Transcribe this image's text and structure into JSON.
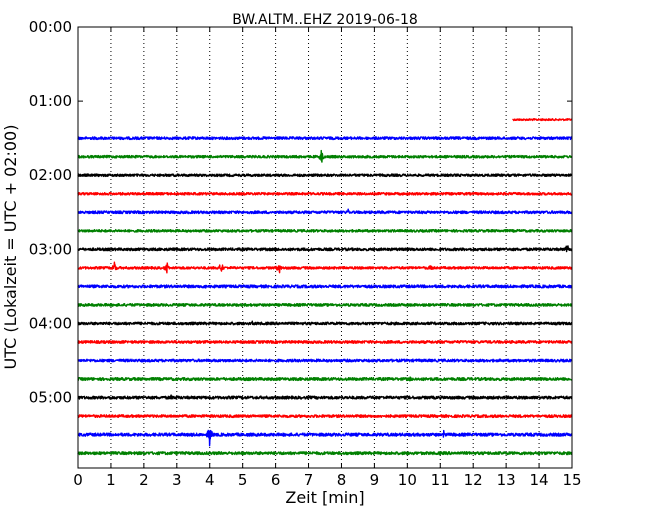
{
  "chart_data": {
    "type": "line",
    "title": "BW.ALTM..EHZ 2019-06-18",
    "xlabel": "Zeit  [min]",
    "ylabel": "UTC (Lokalzeit = UTC + 02:00)",
    "xlim": [
      0,
      15
    ],
    "ylim_hours": [
      0.0,
      5.95
    ],
    "x_ticks": [
      0,
      1,
      2,
      3,
      4,
      5,
      6,
      7,
      8,
      9,
      10,
      11,
      12,
      13,
      14,
      15
    ],
    "x_tick_labels": [
      "0",
      "1",
      "2",
      "3",
      "4",
      "5",
      "6",
      "7",
      "8",
      "9",
      "10",
      "11",
      "12",
      "13",
      "14",
      "15"
    ],
    "y_tick_labels": [
      "00:00",
      "01:00",
      "02:00",
      "03:00",
      "04:00",
      "05:00"
    ],
    "y_ticks_hours": [
      0,
      1,
      2,
      3,
      4,
      5
    ],
    "vertical_grid": "dotted",
    "trace_row_minutes": 15,
    "trace_color_cycle": [
      "#ff0000",
      "#0000ff",
      "#008000",
      "#000000"
    ],
    "traces": [
      {
        "start_hour": 1.25,
        "x_start": 13.2,
        "x_end": 15,
        "color": "#ff0000",
        "noise": 0.9,
        "events": []
      },
      {
        "start_hour": 1.5,
        "x_start": 0,
        "x_end": 15,
        "color": "#0000ff",
        "noise": 1.3,
        "events": []
      },
      {
        "start_hour": 1.75,
        "x_start": 0,
        "x_end": 15,
        "color": "#008000",
        "noise": 1.2,
        "events": [
          {
            "x": 7.4,
            "amp": 9
          }
        ]
      },
      {
        "start_hour": 2.0,
        "x_start": 0,
        "x_end": 15,
        "color": "#000000",
        "noise": 1.2,
        "events": []
      },
      {
        "start_hour": 2.25,
        "x_start": 0,
        "x_end": 15,
        "color": "#ff0000",
        "noise": 1.2,
        "events": []
      },
      {
        "start_hour": 2.5,
        "x_start": 0,
        "x_end": 15,
        "color": "#0000ff",
        "noise": 1.3,
        "events": [
          {
            "x": 8.2,
            "amp": 3
          }
        ]
      },
      {
        "start_hour": 2.75,
        "x_start": 0,
        "x_end": 15,
        "color": "#008000",
        "noise": 1.2,
        "events": []
      },
      {
        "start_hour": 3.0,
        "x_start": 0,
        "x_end": 15,
        "color": "#000000",
        "noise": 1.3,
        "events": [
          {
            "x": 14.85,
            "amp": 8
          }
        ]
      },
      {
        "start_hour": 3.25,
        "x_start": 0,
        "x_end": 15,
        "color": "#ff0000",
        "noise": 1.2,
        "events": [
          {
            "x": 1.1,
            "amp": 8
          },
          {
            "x": 2.7,
            "amp": 8
          },
          {
            "x": 4.35,
            "amp": 8
          },
          {
            "x": 6.1,
            "amp": 7
          },
          {
            "x": 10.7,
            "amp": 3
          }
        ]
      },
      {
        "start_hour": 3.5,
        "x_start": 0,
        "x_end": 15,
        "color": "#0000ff",
        "noise": 1.4,
        "events": [
          {
            "x": 3.9,
            "amp": 3
          }
        ]
      },
      {
        "start_hour": 3.75,
        "x_start": 0,
        "x_end": 15,
        "color": "#008000",
        "noise": 1.3,
        "events": []
      },
      {
        "start_hour": 4.0,
        "x_start": 0,
        "x_end": 15,
        "color": "#000000",
        "noise": 1.3,
        "events": [
          {
            "x": 5.3,
            "amp": 2
          }
        ]
      },
      {
        "start_hour": 4.25,
        "x_start": 0,
        "x_end": 15,
        "color": "#ff0000",
        "noise": 1.3,
        "events": []
      },
      {
        "start_hour": 4.5,
        "x_start": 0,
        "x_end": 15,
        "color": "#0000ff",
        "noise": 1.3,
        "events": []
      },
      {
        "start_hour": 4.75,
        "x_start": 0,
        "x_end": 15,
        "color": "#008000",
        "noise": 1.4,
        "events": [
          {
            "x": 10.1,
            "amp": 2
          }
        ]
      },
      {
        "start_hour": 5.0,
        "x_start": 0,
        "x_end": 15,
        "color": "#000000",
        "noise": 1.4,
        "events": [
          {
            "x": 2.85,
            "amp": 3
          }
        ]
      },
      {
        "start_hour": 5.25,
        "x_start": 0,
        "x_end": 15,
        "color": "#ff0000",
        "noise": 1.3,
        "events": []
      },
      {
        "start_hour": 5.5,
        "x_start": 0,
        "x_end": 15,
        "color": "#0000ff",
        "noise": 1.5,
        "events": [
          {
            "x": 4.0,
            "amp": 12
          },
          {
            "x": 11.1,
            "amp": 4
          }
        ]
      },
      {
        "start_hour": 5.75,
        "x_start": 0,
        "x_end": 15,
        "color": "#008000",
        "noise": 1.4,
        "events": []
      }
    ]
  }
}
